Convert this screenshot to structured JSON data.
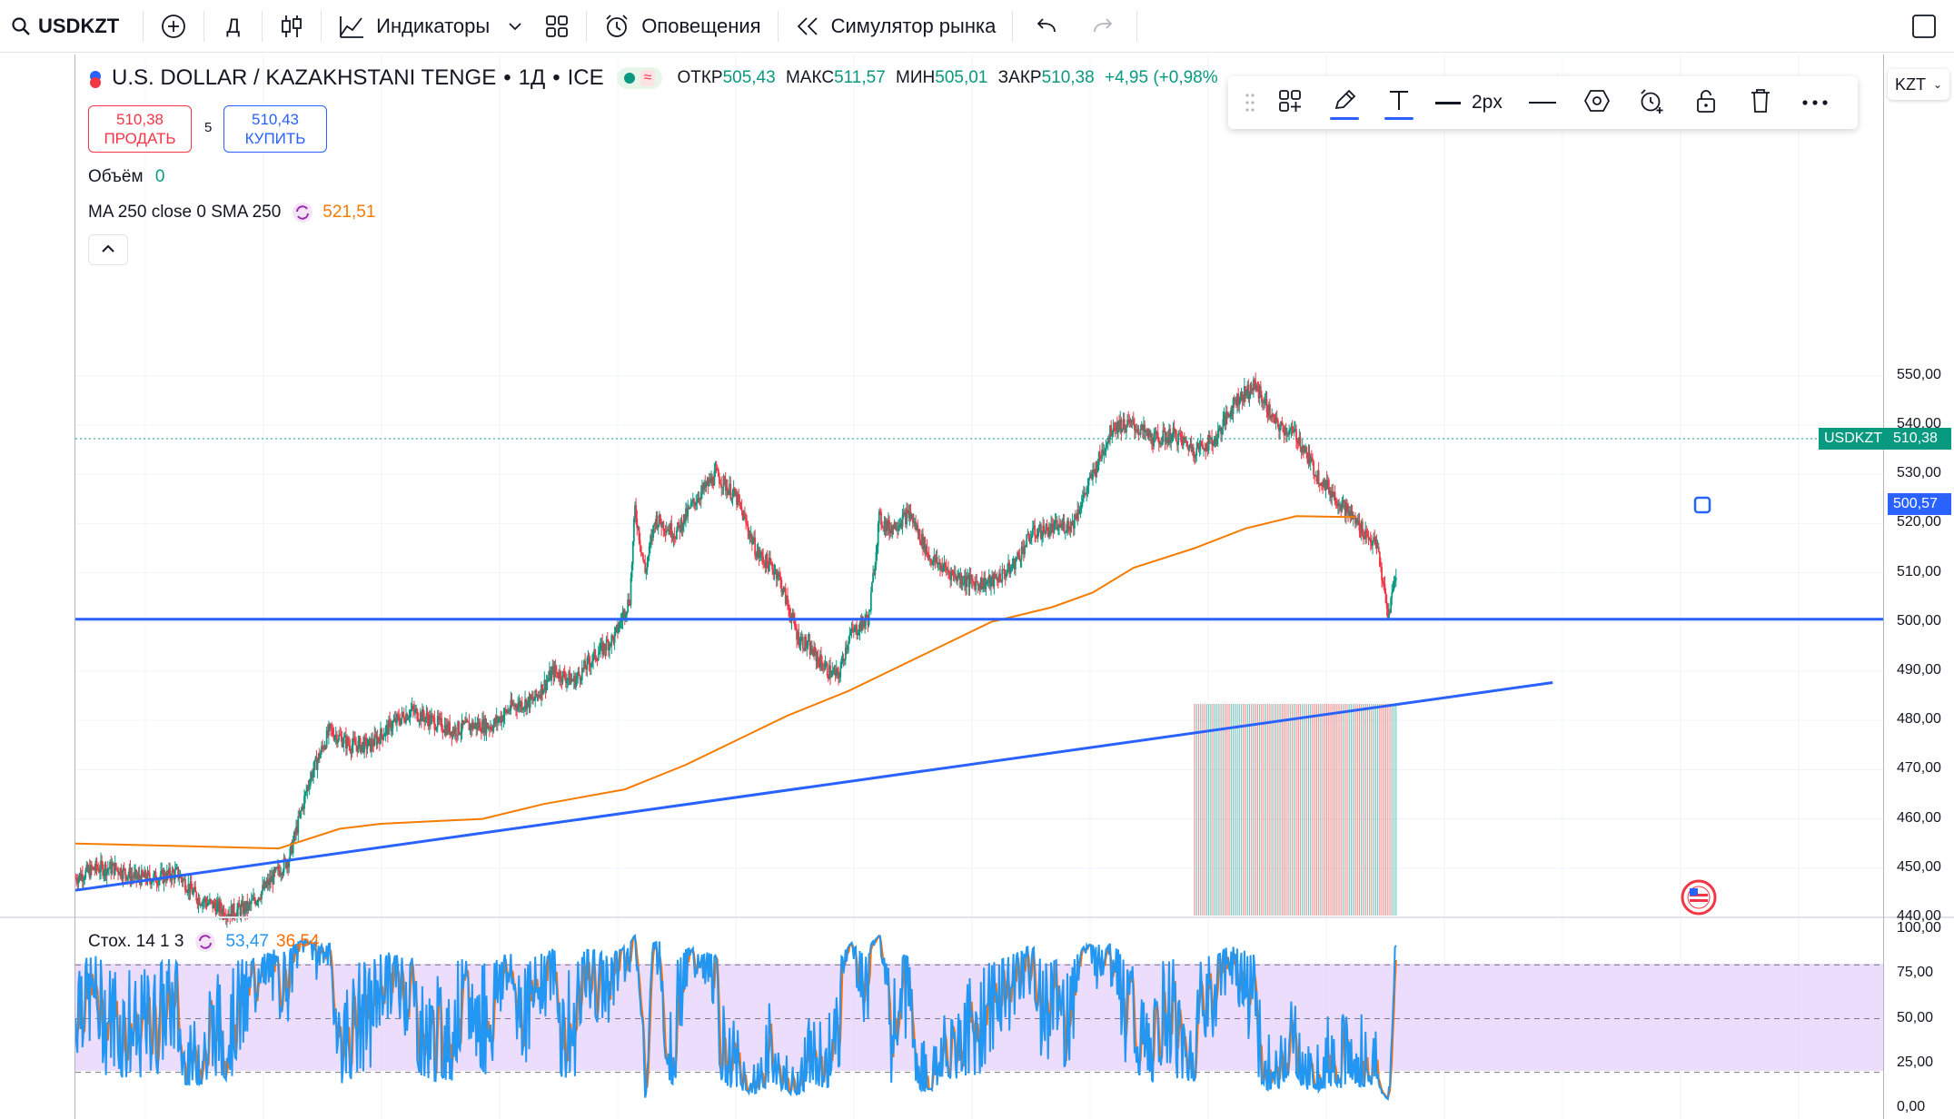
{
  "toolbar": {
    "symbol": "USDKZT",
    "interval": "Д",
    "indicators_label": "Индикаторы",
    "alerts_label": "Оповещения",
    "replay_label": "Симулятор рынка"
  },
  "legend": {
    "title": "U.S. DOLLAR / KAZAKHSTANI TENGE",
    "interval": "1Д",
    "exchange": "ICE",
    "sep": "•",
    "open_label": "ОТКР",
    "open": "505,43",
    "high_label": "МАКС",
    "high": "511,57",
    "low_label": "МИН",
    "low": "505,01",
    "close_label": "ЗАКР",
    "close": "510,38",
    "change": "+4,95 (+0,98%"
  },
  "trade": {
    "sell_price": "510,38",
    "sell_label": "ПРОДАТЬ",
    "spread": "5",
    "buy_price": "510,43",
    "buy_label": "КУПИТЬ"
  },
  "volume": {
    "label": "Объём",
    "value": "0"
  },
  "ma": {
    "label": "MA 250 close 0 SMA 250",
    "value": "521,51"
  },
  "stoch": {
    "label": "Стох. 14 1 3",
    "k": "53,47",
    "d": "36,54"
  },
  "drawing_toolbar": {
    "width_label": "2px"
  },
  "axis": {
    "currency": "KZT",
    "price_ticks": [
      "550,00",
      "540,00",
      "530,00",
      "520,00",
      "510,00",
      "500,00",
      "490,00",
      "480,00",
      "470,00",
      "460,00",
      "450,00",
      "440,00"
    ],
    "osc_ticks": [
      "100,00",
      "75,00",
      "50,00",
      "25,00",
      "0,00"
    ],
    "last_symbol": "USDKZT",
    "last_price": "510,38",
    "line_price": "500,57"
  },
  "colors": {
    "up": "#089981",
    "down": "#f23645",
    "ma": "#f57c00",
    "trend": "#2962ff",
    "stoch_k": "#2196f3",
    "stoch_d": "#ff6d00",
    "stoch_band": "#e1c6fb"
  },
  "chart_data": {
    "type": "candlestick",
    "symbol": "USDKZT",
    "interval": "1D",
    "ylim": [
      440,
      553
    ],
    "price_path": [
      [
        0,
        448
      ],
      [
        20,
        450
      ],
      [
        40,
        450
      ],
      [
        60,
        448
      ],
      [
        80,
        448
      ],
      [
        100,
        449
      ],
      [
        120,
        444
      ],
      [
        140,
        442
      ],
      [
        150,
        441
      ],
      [
        170,
        442
      ],
      [
        190,
        447
      ],
      [
        210,
        452
      ],
      [
        230,
        468
      ],
      [
        250,
        478
      ],
      [
        270,
        475
      ],
      [
        290,
        475
      ],
      [
        310,
        479
      ],
      [
        330,
        482
      ],
      [
        350,
        480
      ],
      [
        370,
        478
      ],
      [
        390,
        479
      ],
      [
        410,
        479
      ],
      [
        430,
        483
      ],
      [
        450,
        484
      ],
      [
        470,
        490
      ],
      [
        490,
        488
      ],
      [
        510,
        493
      ],
      [
        530,
        497
      ],
      [
        545,
        505
      ],
      [
        550,
        523
      ],
      [
        560,
        510
      ],
      [
        570,
        521
      ],
      [
        590,
        518
      ],
      [
        610,
        525
      ],
      [
        630,
        530
      ],
      [
        650,
        525
      ],
      [
        670,
        514
      ],
      [
        690,
        510
      ],
      [
        710,
        497
      ],
      [
        720,
        495
      ],
      [
        740,
        490
      ],
      [
        750,
        489
      ],
      [
        760,
        497
      ],
      [
        780,
        501
      ],
      [
        790,
        521
      ],
      [
        800,
        519
      ],
      [
        820,
        522
      ],
      [
        840,
        513
      ],
      [
        860,
        510
      ],
      [
        880,
        508
      ],
      [
        900,
        508
      ],
      [
        920,
        511
      ],
      [
        940,
        518
      ],
      [
        960,
        519
      ],
      [
        980,
        520
      ],
      [
        1000,
        530
      ],
      [
        1020,
        540
      ],
      [
        1040,
        540
      ],
      [
        1060,
        537
      ],
      [
        1080,
        538
      ],
      [
        1100,
        535
      ],
      [
        1120,
        537
      ],
      [
        1140,
        545
      ],
      [
        1160,
        548
      ],
      [
        1180,
        540
      ],
      [
        1200,
        538
      ],
      [
        1220,
        530
      ],
      [
        1240,
        525
      ],
      [
        1260,
        520
      ],
      [
        1280,
        515
      ],
      [
        1290,
        501
      ],
      [
        1298,
        510
      ]
    ],
    "sma250_path": [
      [
        0,
        455
      ],
      [
        100,
        454.5
      ],
      [
        200,
        454
      ],
      [
        260,
        458
      ],
      [
        300,
        459
      ],
      [
        350,
        459.5
      ],
      [
        400,
        460
      ],
      [
        460,
        463
      ],
      [
        540,
        466
      ],
      [
        600,
        471
      ],
      [
        660,
        477
      ],
      [
        700,
        481
      ],
      [
        760,
        486
      ],
      [
        800,
        490
      ],
      [
        860,
        496
      ],
      [
        900,
        500
      ],
      [
        960,
        503
      ],
      [
        1000,
        506
      ],
      [
        1040,
        511
      ],
      [
        1100,
        515
      ],
      [
        1150,
        519
      ],
      [
        1200,
        521.5
      ],
      [
        1258,
        521.3
      ]
    ],
    "horizontal_line": 500.57,
    "trend_line": [
      [
        0,
        445.5
      ],
      [
        1452,
        487.7
      ]
    ],
    "stochastic": {
      "k_period": 14,
      "k_smoothing": 1,
      "d_smoothing": 3,
      "k": 53.47,
      "d": 36.54,
      "upper_band": 80,
      "lower_band": 20
    }
  }
}
